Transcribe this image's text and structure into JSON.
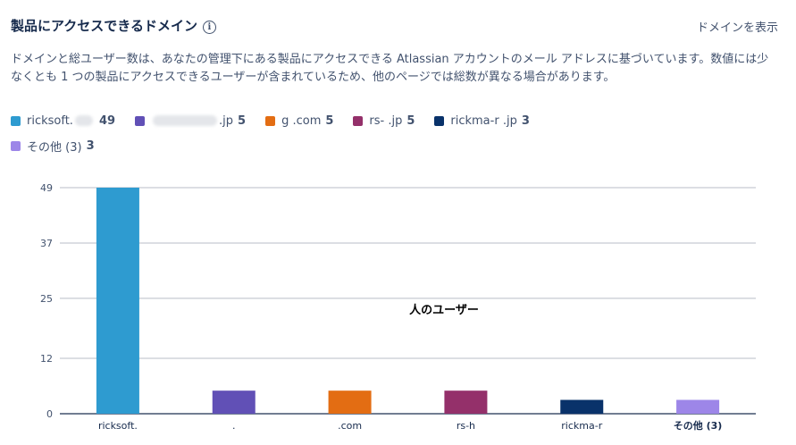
{
  "header": {
    "title": "製品にアクセスできるドメイン",
    "info_icon": "info-icon",
    "show_domains_label": "ドメインを表示"
  },
  "description": "ドメインと総ユーザー数は、あなたの管理下にある製品にアクセスできる Atlassian アカウントのメール アドレスに基づいています。数値には少なくとも 1 つの製品にアクセスできるユーザーが含まれているため、他のページでは総数が異なる場合があります。",
  "legend": [
    {
      "label": "ricksoft.",
      "value": "49",
      "color": "#2e9bd0"
    },
    {
      "label": ".jp",
      "value": "5",
      "color": "#6150b6"
    },
    {
      "label": "g    .com",
      "value": "5",
      "color": "#e36d13"
    },
    {
      "label": "rs-         .jp",
      "value": "5",
      "color": "#94306a"
    },
    {
      "label": "rickma-r           .jp",
      "value": "3",
      "color": "#09326a"
    },
    {
      "label": "その他 (3)",
      "value": "3",
      "color": "#9d86e8"
    }
  ],
  "chart_data": {
    "type": "bar",
    "categories": [
      "ricksoft.",
      ".",
      ".com",
      "rs-h",
      "rickma-r",
      "その他 (3)"
    ],
    "values": [
      49,
      5,
      5,
      5,
      3,
      3
    ],
    "colors": [
      "#2e9bd0",
      "#6150b6",
      "#e36d13",
      "#94306a",
      "#09326a",
      "#9d86e8"
    ],
    "yticks": [
      "0",
      "12",
      "25",
      "37",
      "49"
    ],
    "ylim": [
      0,
      49
    ],
    "ylabel": "人のユーザー",
    "xlabel": "",
    "grid": true
  }
}
